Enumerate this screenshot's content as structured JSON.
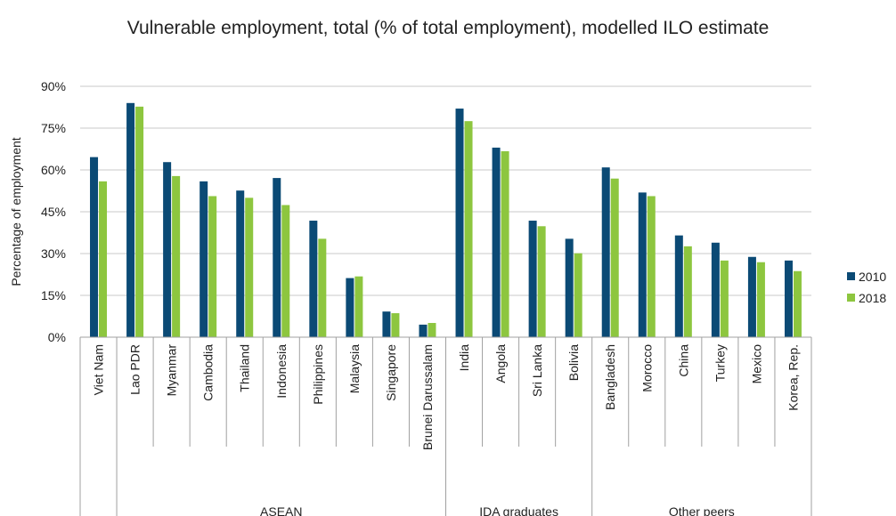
{
  "chart_data": {
    "type": "bar",
    "title": "Vulnerable employment, total (% of total employment), modelled ILO estimate",
    "ylabel": "Percentage of employment",
    "ylim": [
      0,
      90
    ],
    "yticks": [
      "0%",
      "15%",
      "30%",
      "45%",
      "60%",
      "75%",
      "90%"
    ],
    "yticks_values": [
      0,
      15,
      30,
      45,
      60,
      75,
      90
    ],
    "grid": true,
    "legend_position": "right",
    "categories": [
      "Viet Nam",
      "Lao PDR",
      "Myanmar",
      "Cambodia",
      "Thailand",
      "Indonesia",
      "Philippines",
      "Malaysia",
      "Singapore",
      "Brunei Darussalam",
      "India",
      "Angola",
      "Sri Lanka",
      "Bolivia",
      "Bangladesh",
      "Morocco",
      "China",
      "Turkey",
      "Mexico",
      "Korea, Rep."
    ],
    "groups": [
      {
        "name": "",
        "start": 0,
        "end": 0
      },
      {
        "name": "ASEAN",
        "start": 1,
        "end": 9
      },
      {
        "name": "IDA graduates",
        "start": 10,
        "end": 13
      },
      {
        "name": "Other peers",
        "start": 14,
        "end": 19
      }
    ],
    "series": [
      {
        "name": "2010",
        "color": "#0B4A75",
        "values": [
          64.6,
          84.0,
          62.8,
          55.9,
          52.6,
          57.1,
          41.8,
          21.2,
          9.2,
          4.5,
          82.0,
          68.0,
          41.8,
          35.3,
          60.9,
          51.9,
          36.5,
          33.9,
          28.8,
          27.5
        ]
      },
      {
        "name": "2018",
        "color": "#8DC63F",
        "values": [
          55.9,
          82.7,
          57.8,
          50.6,
          50.0,
          47.4,
          35.3,
          21.8,
          8.6,
          5.1,
          77.5,
          66.7,
          39.8,
          30.1,
          56.9,
          50.6,
          32.6,
          27.5,
          26.9,
          23.7
        ]
      }
    ]
  }
}
